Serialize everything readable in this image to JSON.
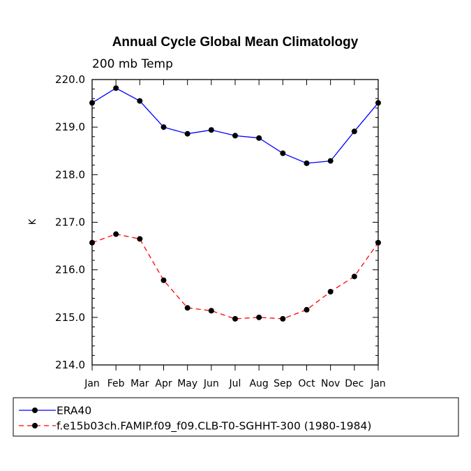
{
  "chart_data": {
    "type": "line",
    "title": "Annual Cycle Global Mean Climatology",
    "subtitle": "200 mb Temp",
    "xlabel": "",
    "ylabel": "K",
    "categories": [
      "Jan",
      "Feb",
      "Mar",
      "Apr",
      "May",
      "Jun",
      "Jul",
      "Aug",
      "Sep",
      "Oct",
      "Nov",
      "Dec",
      "Jan"
    ],
    "ylim": [
      214.0,
      220.0
    ],
    "yticks": [
      "214.0",
      "215.0",
      "216.0",
      "217.0",
      "218.0",
      "219.0",
      "220.0"
    ],
    "grid": false,
    "legend_position": "bottom",
    "series": [
      {
        "name": "ERA40",
        "color": "#0000ff",
        "dash": "solid",
        "values": [
          219.51,
          219.82,
          219.55,
          219.0,
          218.86,
          218.94,
          218.82,
          218.77,
          218.45,
          218.24,
          218.29,
          218.91,
          219.51
        ]
      },
      {
        "name": "f.e15b03ch.FAMIP.f09_f09.CLB-T0-SGHHT-300 (1980-1984)",
        "color": "#ff0000",
        "dash": "dashed",
        "values": [
          216.57,
          216.75,
          216.65,
          215.78,
          215.2,
          215.14,
          214.97,
          215.0,
          214.97,
          215.16,
          215.54,
          215.86,
          216.57
        ]
      }
    ]
  }
}
